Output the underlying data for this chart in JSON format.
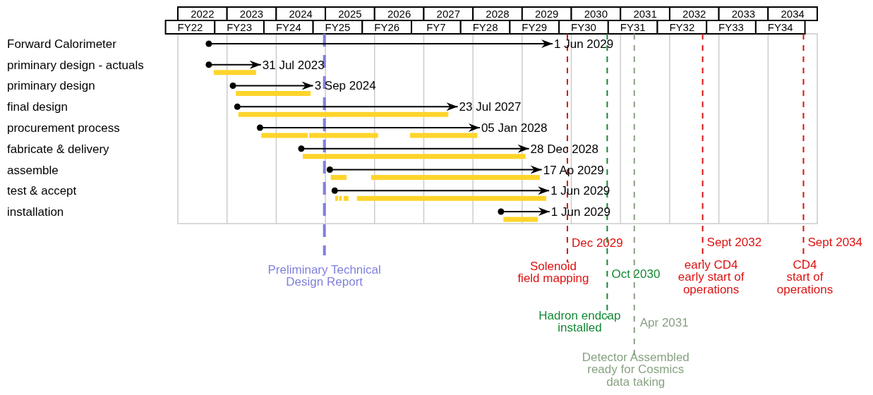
{
  "chart_data": {
    "type": "bar",
    "orientation": "horizontal",
    "categories": [
      "Forward Calorimeter",
      "priminary design - actuals",
      "priminary design",
      "final design",
      "procurement process",
      "fabricate & delivery",
      "assemble",
      "test & accept",
      "installation"
    ],
    "series": [
      {
        "type": "bar",
        "marker": "circle",
        "color": "#000000",
        "base": [
          2022.63,
          2022.63,
          2023.12,
          2023.21,
          2023.67,
          2024.51,
          2025.09,
          2025.19,
          2028.57
        ],
        "values": [
          6.99,
          1.06,
          1.63,
          4.48,
          4.47,
          4.63,
          4.31,
          4.36,
          0.99
        ]
      },
      {
        "type": "bar",
        "color": "#ffd42a",
        "base": [
          null,
          2022.73,
          2023.18,
          2023.23,
          2023.7,
          2024.54,
          2025.11,
          2025.2,
          2028.62
        ],
        "values": [
          null,
          0.86,
          1.52,
          4.27,
          0.94,
          4.53,
          0.32,
          0.06,
          0.7
        ]
      },
      {
        "type": "bar",
        "color": "#ffd42a",
        "base": [
          null,
          null,
          null,
          null,
          2024.67,
          null,
          2025.93,
          2025.28,
          null
        ],
        "values": [
          null,
          null,
          null,
          null,
          1.4,
          null,
          3.43,
          0.05,
          null
        ]
      },
      {
        "type": "bar",
        "color": "#ffd42a",
        "base": [
          null,
          null,
          null,
          null,
          2026.72,
          null,
          null,
          2025.37,
          null
        ],
        "values": [
          null,
          null,
          null,
          null,
          1.37,
          null,
          null,
          0.1,
          null
        ]
      },
      {
        "type": "bar",
        "color": "#ffd42a",
        "base": [
          null,
          null,
          null,
          null,
          null,
          null,
          null,
          2025.64,
          null
        ],
        "values": [
          null,
          null,
          null,
          null,
          null,
          null,
          null,
          3.85,
          null
        ]
      }
    ],
    "xlim": [
      2022,
      2035
    ],
    "xticks": [
      {
        "value": 2022.5,
        "label": "2022"
      },
      {
        "value": 2023.5,
        "label": "2023"
      },
      {
        "value": 2024.5,
        "label": "2024"
      },
      {
        "value": 2025.5,
        "label": "2025"
      },
      {
        "value": 2026.5,
        "label": "2026"
      },
      {
        "value": 2027.5,
        "label": "2027"
      },
      {
        "value": 2028.5,
        "label": "2028"
      },
      {
        "value": 2029.5,
        "label": "2029"
      },
      {
        "value": 2030.5,
        "label": "2030"
      },
      {
        "value": 2031.5,
        "label": "2031"
      },
      {
        "value": 2032.5,
        "label": "2032"
      },
      {
        "value": 2033.5,
        "label": "2033"
      },
      {
        "value": 2034.5,
        "label": "2034"
      },
      {
        "value": 2023,
        "label": null
      },
      {
        "value": 2024,
        "label": null
      },
      {
        "value": 2025,
        "label": null
      },
      {
        "value": 2026,
        "label": null
      },
      {
        "value": 2027,
        "label": null
      },
      {
        "value": 2028,
        "label": null
      },
      {
        "value": 2029,
        "label": null
      },
      {
        "value": 2030,
        "label": null
      },
      {
        "value": 2031,
        "label": null
      },
      {
        "value": 2032,
        "label": null
      },
      {
        "value": 2033,
        "label": null
      },
      {
        "value": 2034,
        "label": null
      }
    ],
    "grid": "x",
    "ref_lines": [
      {
        "axis": "x",
        "value": 2024.98,
        "label": "Preliminary Technical\nDesign Report",
        "color": "#8080dd",
        "line_style": "dashed"
      },
      {
        "axis": "x",
        "value": 2029.92,
        "label": "Dec 2029",
        "color": "#dd1111",
        "line_style": "dashed"
      },
      {
        "axis": "x",
        "value": 2030.73,
        "label": "Oct 2030",
        "color": "#118833",
        "line_style": "dashed"
      },
      {
        "axis": "x",
        "value": 2031.28,
        "label": "Apr 2031",
        "color": "#88a282",
        "line_style": "dashed"
      },
      {
        "axis": "x",
        "value": 2032.67,
        "label": "Sept 2032",
        "color": "#dd1111",
        "line_style": "dashed"
      },
      {
        "axis": "x",
        "value": 2034.72,
        "label": "Sept 2034",
        "color": "#dd1111",
        "line_style": "dashed"
      }
    ],
    "annotations": [
      {
        "text": "1 Jun 2029",
        "x": 2029.62,
        "y": "Forward Calorimeter"
      },
      {
        "text": "31 Jul 2023",
        "x": 2023.69,
        "y": "priminary design - actuals"
      },
      {
        "text": "3 Sep 2024",
        "x": 2024.75,
        "y": "priminary design"
      },
      {
        "text": "23 Jul 2027",
        "x": 2027.69,
        "y": "final design"
      },
      {
        "text": "05 Jan 2028",
        "x": 2028.14,
        "y": "procurement process"
      },
      {
        "text": "28 Dec 2028",
        "x": 2029.14,
        "y": "fabricate & delivery"
      },
      {
        "text": "17 Ap 2029",
        "x": 2029.4,
        "y": "assemble"
      },
      {
        "text": "1 Jun 2029",
        "x": 2029.55,
        "y": "test & accept"
      },
      {
        "text": "1 Jun 2029",
        "x": 2029.56,
        "y": "installation"
      },
      "Solenoid\nfield mapping",
      "Hadron endcap\ninstalled",
      "Detector Assembled\nready for Cosmics\ndata taking",
      "early CD4\nearly start of\noperations",
      "CD4\nstart of\noperations",
      "FY22",
      "FY23",
      "FY24",
      "FY25",
      "FY26",
      "FY7",
      "FY28",
      "FY29",
      "FY30",
      "FY31",
      "FY32",
      "FY33",
      "FY34"
    ]
  }
}
